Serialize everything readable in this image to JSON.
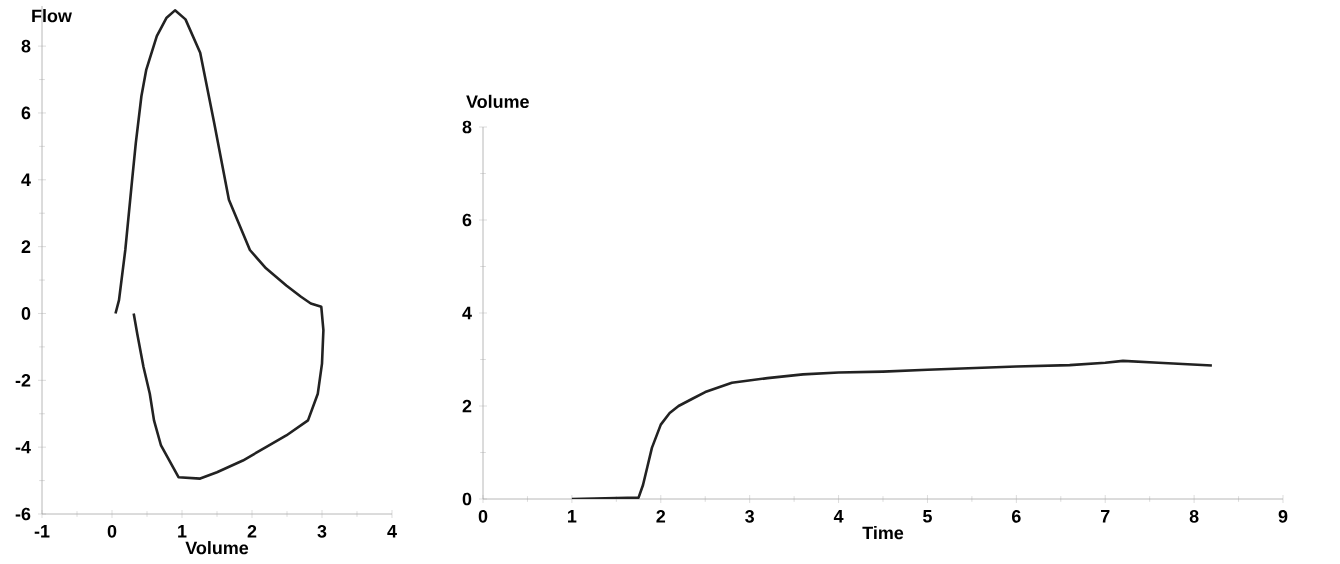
{
  "chart_data": [
    {
      "type": "line",
      "xlabel": "Volume",
      "ylabel": "Flow",
      "xlim": [
        -1,
        4
      ],
      "ylim": [
        -6,
        9.2
      ],
      "xticks": [
        -1,
        0,
        1,
        2,
        3,
        4
      ],
      "yticks": [
        -6,
        -4,
        -2,
        0,
        2,
        4,
        6,
        8
      ],
      "series": [
        {
          "color": "#222222",
          "x": [
            0.05,
            0.1,
            0.19,
            0.29,
            0.34,
            0.42,
            0.49,
            0.64,
            0.78,
            0.9,
            1.05,
            1.26,
            1.46,
            1.67,
            1.97,
            2.2,
            2.49,
            2.7,
            2.84,
            2.99,
            3.02,
            3.0,
            2.94,
            2.8,
            2.49,
            2.2,
            1.87,
            1.5,
            1.26,
            0.95,
            0.7,
            0.6,
            0.54,
            0.45,
            0.36,
            0.31
          ],
          "values": [
            0,
            0.4,
            1.9,
            4.05,
            5.1,
            6.5,
            7.3,
            8.3,
            8.85,
            9.07,
            8.8,
            7.8,
            5.7,
            3.4,
            1.9,
            1.35,
            0.84,
            0.5,
            0.3,
            0.2,
            -0.5,
            -1.5,
            -2.4,
            -3.2,
            -3.65,
            -4.0,
            -4.4,
            -4.75,
            -4.94,
            -4.9,
            -3.95,
            -3.2,
            -2.4,
            -1.6,
            -0.6,
            0
          ]
        }
      ]
    },
    {
      "type": "line",
      "xlabel": "Time",
      "ylabel": "Volume",
      "xlim": [
        0,
        9
      ],
      "ylim": [
        0,
        8
      ],
      "xticks": [
        0,
        1,
        2,
        3,
        4,
        5,
        6,
        7,
        8,
        9
      ],
      "yticks": [
        0,
        2,
        4,
        6,
        8
      ],
      "series": [
        {
          "color": "#222222",
          "x": [
            1.0,
            1.5,
            1.75,
            1.8,
            1.85,
            1.9,
            2.0,
            2.1,
            2.2,
            2.35,
            2.5,
            2.8,
            3.2,
            3.6,
            4.0,
            4.5,
            5.0,
            6.0,
            6.6,
            7.0,
            7.2,
            7.6,
            8.2
          ],
          "values": [
            0,
            0.02,
            0.03,
            0.3,
            0.7,
            1.1,
            1.6,
            1.85,
            2.0,
            2.15,
            2.3,
            2.5,
            2.6,
            2.68,
            2.72,
            2.74,
            2.78,
            2.85,
            2.88,
            2.93,
            2.97,
            2.93,
            2.87
          ]
        }
      ]
    }
  ]
}
